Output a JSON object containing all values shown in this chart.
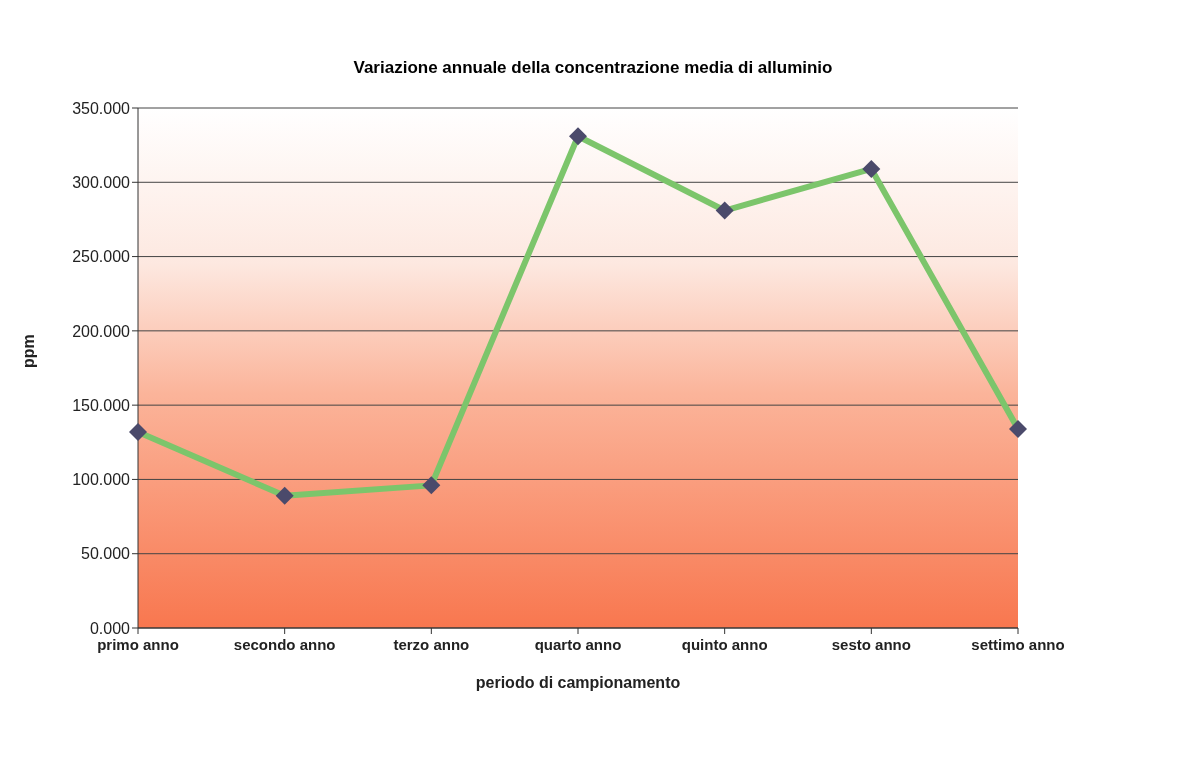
{
  "chart_data": {
    "type": "line",
    "title": "Variazione annuale della concentrazione media di alluminio",
    "xlabel": "periodo di campionamento",
    "ylabel": "ppm",
    "categories": [
      "primo anno",
      "secondo anno",
      "terzo anno",
      "quarto anno",
      "quinto anno",
      "sesto anno",
      "settimo anno"
    ],
    "series": [
      {
        "color": "#7cc56b",
        "values": [
          132,
          89,
          96,
          331,
          281,
          309,
          134
        ]
      }
    ],
    "ylim": [
      0,
      350
    ],
    "yticks": [
      {
        "value": 0,
        "label": "0.000"
      },
      {
        "value": 50,
        "label": "50.000"
      },
      {
        "value": 100,
        "label": "100.000"
      },
      {
        "value": 150,
        "label": "150.000"
      },
      {
        "value": 200,
        "label": "200.000"
      },
      {
        "value": 250,
        "label": "250.000"
      },
      {
        "value": 300,
        "label": "300.000"
      },
      {
        "value": 350,
        "label": "350.000"
      }
    ],
    "grid": "y",
    "marker": "diamond",
    "line_style": "solid"
  }
}
